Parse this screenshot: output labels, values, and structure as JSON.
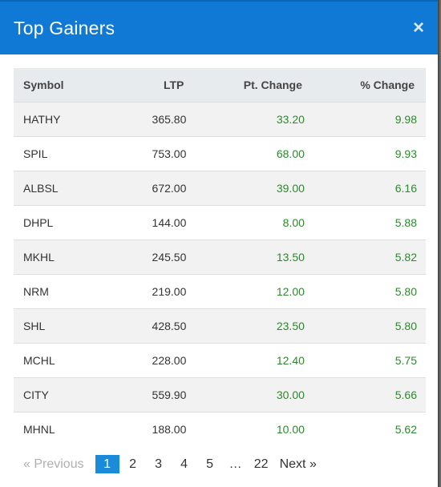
{
  "modal": {
    "title": "Top Gainers",
    "close_symbol": "×"
  },
  "table": {
    "headers": [
      "Symbol",
      "LTP",
      "Pt. Change",
      "% Change"
    ],
    "rows": [
      [
        "HATHY",
        "365.80",
        "33.20",
        "9.98"
      ],
      [
        "SPIL",
        "753.00",
        "68.00",
        "9.93"
      ],
      [
        "ALBSL",
        "672.00",
        "39.00",
        "6.16"
      ],
      [
        "DHPL",
        "144.00",
        "8.00",
        "5.88"
      ],
      [
        "MKHL",
        "245.50",
        "13.50",
        "5.82"
      ],
      [
        "NRM",
        "219.00",
        "12.00",
        "5.80"
      ],
      [
        "SHL",
        "428.50",
        "23.50",
        "5.80"
      ],
      [
        "MCHL",
        "228.00",
        "12.40",
        "5.75"
      ],
      [
        "CITY",
        "559.90",
        "30.00",
        "5.66"
      ],
      [
        "MHNL",
        "188.00",
        "10.00",
        "5.62"
      ]
    ]
  },
  "pagination": {
    "previous": "«  Previous",
    "pages": [
      "1",
      "2",
      "3",
      "4",
      "5"
    ],
    "ellipsis": "…",
    "last": "22",
    "next": "Next  »",
    "current": "1"
  },
  "colors": {
    "header_bg": "#1079d6",
    "positive": "#2c8a2c",
    "active_page": "#1a8bd9"
  }
}
